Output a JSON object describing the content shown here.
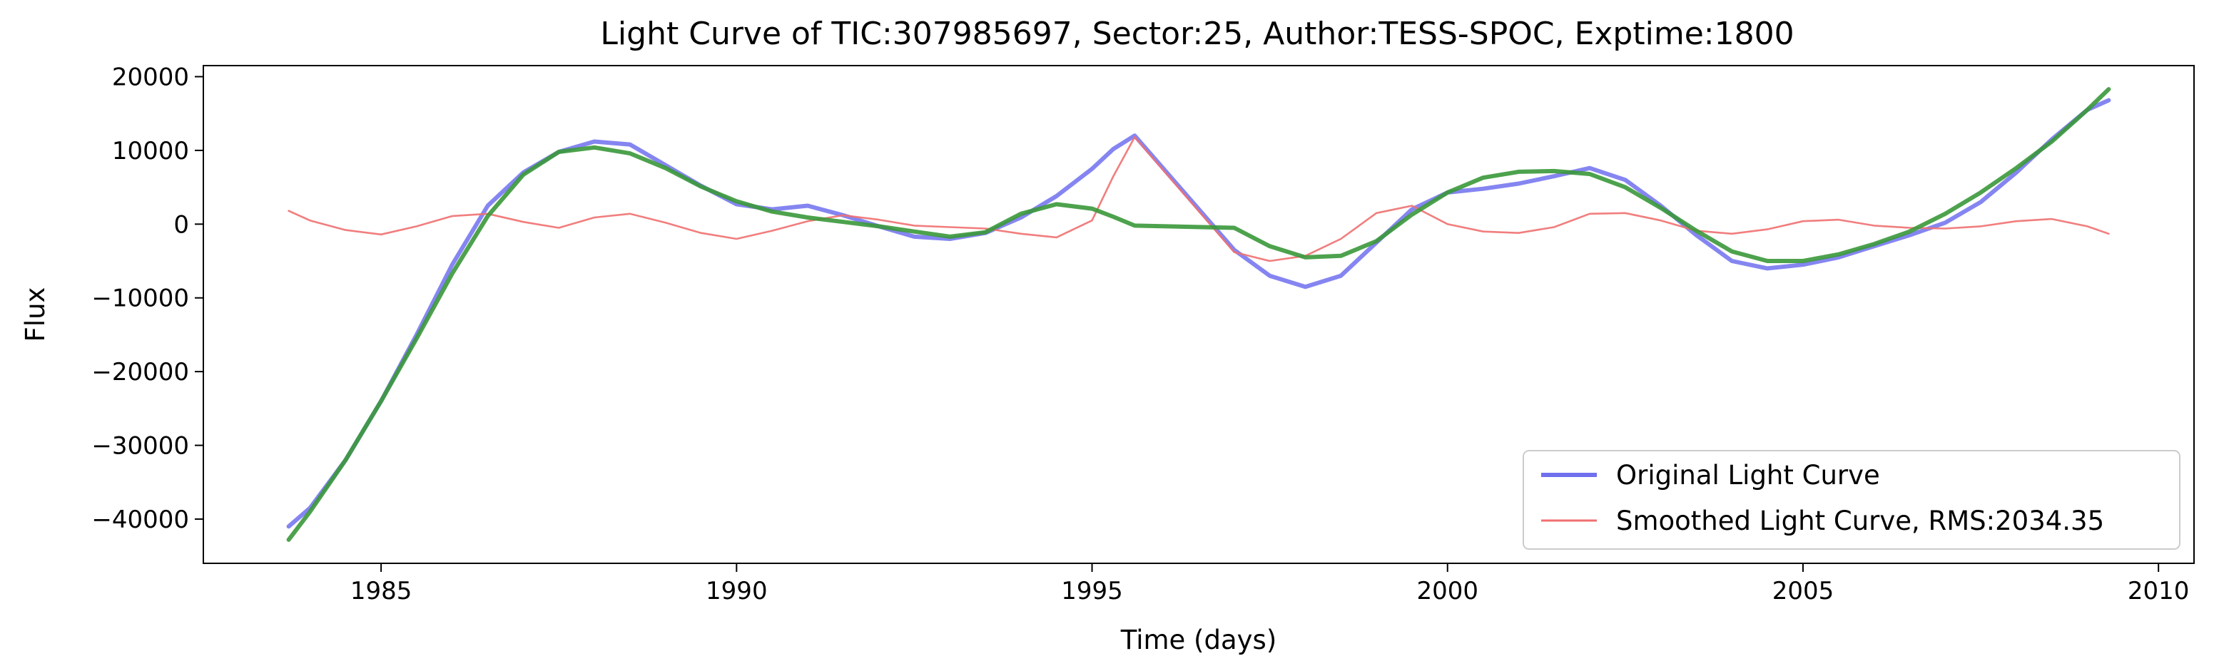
{
  "chart_data": {
    "type": "line",
    "title": "Light Curve of TIC:307985697, Sector:25, Author:TESS-SPOC, Exptime:1800",
    "xlabel": "Time (days)",
    "ylabel": "Flux",
    "xlim": [
      1982.5,
      2010.5
    ],
    "ylim": [
      -46000,
      21500
    ],
    "xticks": [
      1985,
      1990,
      1995,
      2000,
      2005,
      2010
    ],
    "yticks": [
      -40000,
      -30000,
      -20000,
      -10000,
      0,
      10000,
      20000
    ],
    "xtick_labels": [
      "1985",
      "1990",
      "1995",
      "2000",
      "2005",
      "2010"
    ],
    "ytick_labels": [
      "−40000",
      "−30000",
      "−20000",
      "−10000",
      "0",
      "10000",
      "20000"
    ],
    "grid": false,
    "legend_position": "lower right",
    "series": [
      {
        "name": "Original Light Curve",
        "color": "#7070ee",
        "x": [
          1983.7,
          1984.0,
          1984.5,
          1985.0,
          1985.5,
          1986.0,
          1986.5,
          1987.0,
          1987.5,
          1988.0,
          1988.5,
          1989.0,
          1989.5,
          1990.0,
          1990.5,
          1991.0,
          1991.5,
          1992.0,
          1992.5,
          1993.0,
          1993.5,
          1994.0,
          1994.5,
          1995.0,
          1995.3,
          1995.6,
          1997.0,
          1997.5,
          1998.0,
          1998.5,
          1999.0,
          1999.5,
          2000.0,
          2000.5,
          2001.0,
          2001.5,
          2002.0,
          2002.5,
          2003.0,
          2003.5,
          2004.0,
          2004.5,
          2005.0,
          2005.5,
          2006.0,
          2006.5,
          2007.0,
          2007.5,
          2008.0,
          2008.5,
          2009.0,
          2009.3
        ],
        "y": [
          -41000,
          -38500,
          -32000,
          -24000,
          -15000,
          -5500,
          2500,
          7000,
          9800,
          11200,
          10800,
          8000,
          5200,
          2700,
          2000,
          2500,
          1200,
          -300,
          -1700,
          -2000,
          -1200,
          900,
          3800,
          7500,
          10200,
          12000,
          -3500,
          -7000,
          -8500,
          -7000,
          -2500,
          2000,
          4300,
          4800,
          5500,
          6500,
          7600,
          6000,
          2500,
          -1500,
          -5000,
          -6000,
          -5500,
          -4500,
          -3000,
          -1500,
          200,
          3000,
          7000,
          11500,
          15500,
          16800
        ]
      },
      {
        "name": "Smoothed Light Curve, RMS:2034.35",
        "color": "#f07070",
        "x": [
          1983.7,
          1984.0,
          1984.5,
          1985.0,
          1985.5,
          1986.0,
          1986.5,
          1987.0,
          1987.5,
          1988.0,
          1988.5,
          1989.0,
          1989.5,
          1990.0,
          1990.5,
          1991.0,
          1991.5,
          1992.0,
          1992.5,
          1993.0,
          1993.5,
          1994.0,
          1994.5,
          1995.0,
          1995.3,
          1995.6,
          1997.0,
          1997.5,
          1998.0,
          1998.5,
          1999.0,
          1999.5,
          2000.0,
          2000.5,
          2001.0,
          2001.5,
          2002.0,
          2002.5,
          2003.0,
          2003.5,
          2004.0,
          2004.5,
          2005.0,
          2005.5,
          2006.0,
          2006.5,
          2007.0,
          2007.5,
          2008.0,
          2008.5,
          2009.0,
          2009.3
        ],
        "y": [
          1800,
          500,
          -800,
          -1400,
          -300,
          1100,
          1400,
          300,
          -500,
          900,
          1400,
          200,
          -1200,
          -2000,
          -900,
          400,
          1200,
          600,
          -200,
          -400,
          -600,
          -1300,
          -1800,
          500,
          6500,
          11800,
          -3800,
          -5000,
          -4300,
          -2000,
          1500,
          2500,
          0,
          -1000,
          -1200,
          -400,
          1400,
          1500,
          500,
          -900,
          -1300,
          -700,
          400,
          600,
          -200,
          -500,
          -600,
          -300,
          400,
          700,
          -300,
          -1300
        ]
      },
      {
        "name": "",
        "color": "#3a983a",
        "x": [
          1983.7,
          1984.0,
          1984.5,
          1985.0,
          1985.5,
          1986.0,
          1986.5,
          1987.0,
          1987.5,
          1988.0,
          1988.5,
          1989.0,
          1989.5,
          1990.0,
          1990.5,
          1991.0,
          1991.5,
          1992.0,
          1992.5,
          1993.0,
          1993.5,
          1994.0,
          1994.5,
          1995.0,
          1995.3,
          1995.6,
          1997.0,
          1997.5,
          1998.0,
          1998.5,
          1999.0,
          1999.5,
          2000.0,
          2000.5,
          2001.0,
          2001.5,
          2002.0,
          2002.5,
          2003.0,
          2003.5,
          2004.0,
          2004.5,
          2005.0,
          2005.5,
          2006.0,
          2006.5,
          2007.0,
          2007.5,
          2008.0,
          2008.5,
          2009.0,
          2009.3
        ],
        "y": [
          -42800,
          -39000,
          -32000,
          -24000,
          -15500,
          -6700,
          1100,
          6700,
          9800,
          10400,
          9600,
          7600,
          5100,
          3100,
          1700,
          900,
          300,
          -300,
          -1000,
          -1700,
          -1100,
          1400,
          2700,
          2100,
          1000,
          -200,
          -500,
          -3000,
          -4500,
          -4300,
          -2300,
          1300,
          4300,
          6300,
          7100,
          7200,
          6800,
          5000,
          2200,
          -900,
          -3700,
          -5000,
          -5000,
          -4100,
          -2700,
          -1000,
          1400,
          4300,
          7600,
          11200,
          15500,
          18300
        ]
      }
    ]
  }
}
